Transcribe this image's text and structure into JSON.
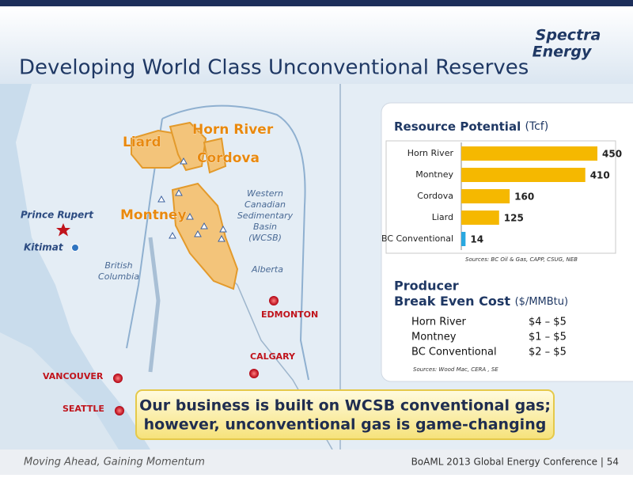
{
  "header": {
    "title": "Developing World Class Unconventional Reserves",
    "logo_line1": "Spectra",
    "logo_line2": "Energy"
  },
  "map": {
    "liard": "Liard",
    "horn_river": "Horn River",
    "cordova": "Cordova",
    "montney": "Montney",
    "wcsb_line1": "Western",
    "wcsb_line2": "Canadian",
    "wcsb_line3": "Sedimentary",
    "wcsb_line4": "Basin",
    "wcsb_line5": "(WCSB)",
    "bc_line1": "British",
    "bc_line2": "Columbia",
    "alberta": "Alberta",
    "prince_rupert": "Prince Rupert",
    "kitimat": "Kitimat",
    "edmonton": "EDMONTON",
    "calgary": "CALGARY",
    "vancouver": "VANCOUVER",
    "seattle": "SEATTLE"
  },
  "chart_data": {
    "type": "bar",
    "orientation": "horizontal",
    "title": "Resource Potential",
    "unit": "(Tcf)",
    "categories": [
      "Horn River",
      "Montney",
      "Cordova",
      "Liard",
      "BC Conventional"
    ],
    "values": [
      450,
      410,
      160,
      125,
      14
    ],
    "colors": [
      "#f5b800",
      "#f5b800",
      "#f5b800",
      "#f5b800",
      "#29a8e0"
    ],
    "xlim": [
      0,
      450
    ],
    "source": "Sources:  BC Oil & Gas, CAPP, CSUG, NEB"
  },
  "break_even": {
    "title_line1": "Producer",
    "title_line2": "Break Even Cost",
    "unit": "($/MMBtu)",
    "rows": [
      [
        "Horn River",
        "$4 – $5"
      ],
      [
        "Montney",
        "$1 – $5"
      ],
      [
        "BC Conventional",
        "$2 – $5"
      ]
    ],
    "source": "Sources:  Wood Mac, CERA , SE"
  },
  "callout": {
    "line1": "Our business is built on WCSB conventional gas;",
    "line2": "however, unconventional gas is game-changing"
  },
  "footer": {
    "tagline": "Moving Ahead, Gaining Momentum",
    "conference": "BoAML 2013 Global Energy Conference | 54"
  }
}
